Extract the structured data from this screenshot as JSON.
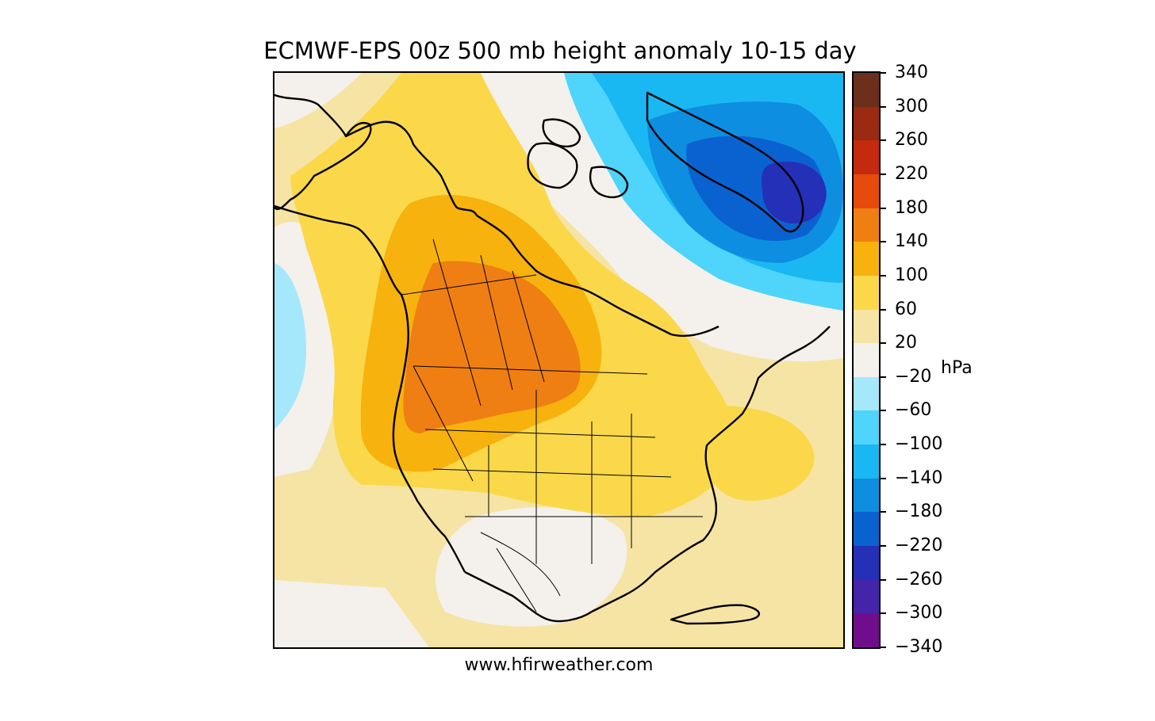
{
  "title": "ECMWF-EPS 00z 500 mb height anomaly 10-15 day",
  "credit": "www.hfirweather.com",
  "colorbar": {
    "unit": "hPa",
    "levels": [
      340,
      300,
      260,
      220,
      180,
      140,
      100,
      60,
      20,
      -20,
      -60,
      -100,
      -140,
      -180,
      -220,
      -260,
      -300,
      -340
    ],
    "tick_labels": [
      "340",
      "300",
      "260",
      "220",
      "180",
      "140",
      "100",
      "60",
      "20",
      "−20",
      "−60",
      "−100",
      "−140",
      "−180",
      "−220",
      "−260",
      "−300",
      "−340"
    ],
    "colors": [
      "#6b2f1b",
      "#9a2a12",
      "#c42a0e",
      "#e64a0c",
      "#ef7f12",
      "#f7b20e",
      "#fad84a",
      "#f6e4a4",
      "#f4f0eb",
      "#a6e8fb",
      "#4fd4fb",
      "#1ab8f2",
      "#0e8ee0",
      "#0a62d0",
      "#2430b8",
      "#4424a8",
      "#700d8c"
    ]
  },
  "map": {
    "region": "North America",
    "coastline_color": "#000000",
    "anomaly_features": [
      {
        "label": "positive anomaly over western Canada / northwestern US",
        "max_level": 180
      },
      {
        "label": "negative anomaly over Greenland",
        "min_level": -260
      },
      {
        "label": "weak negative anomaly over northeast Pacific",
        "min_level": -60
      },
      {
        "label": "near-zero anomaly over Mexico",
        "level": 0
      }
    ]
  }
}
